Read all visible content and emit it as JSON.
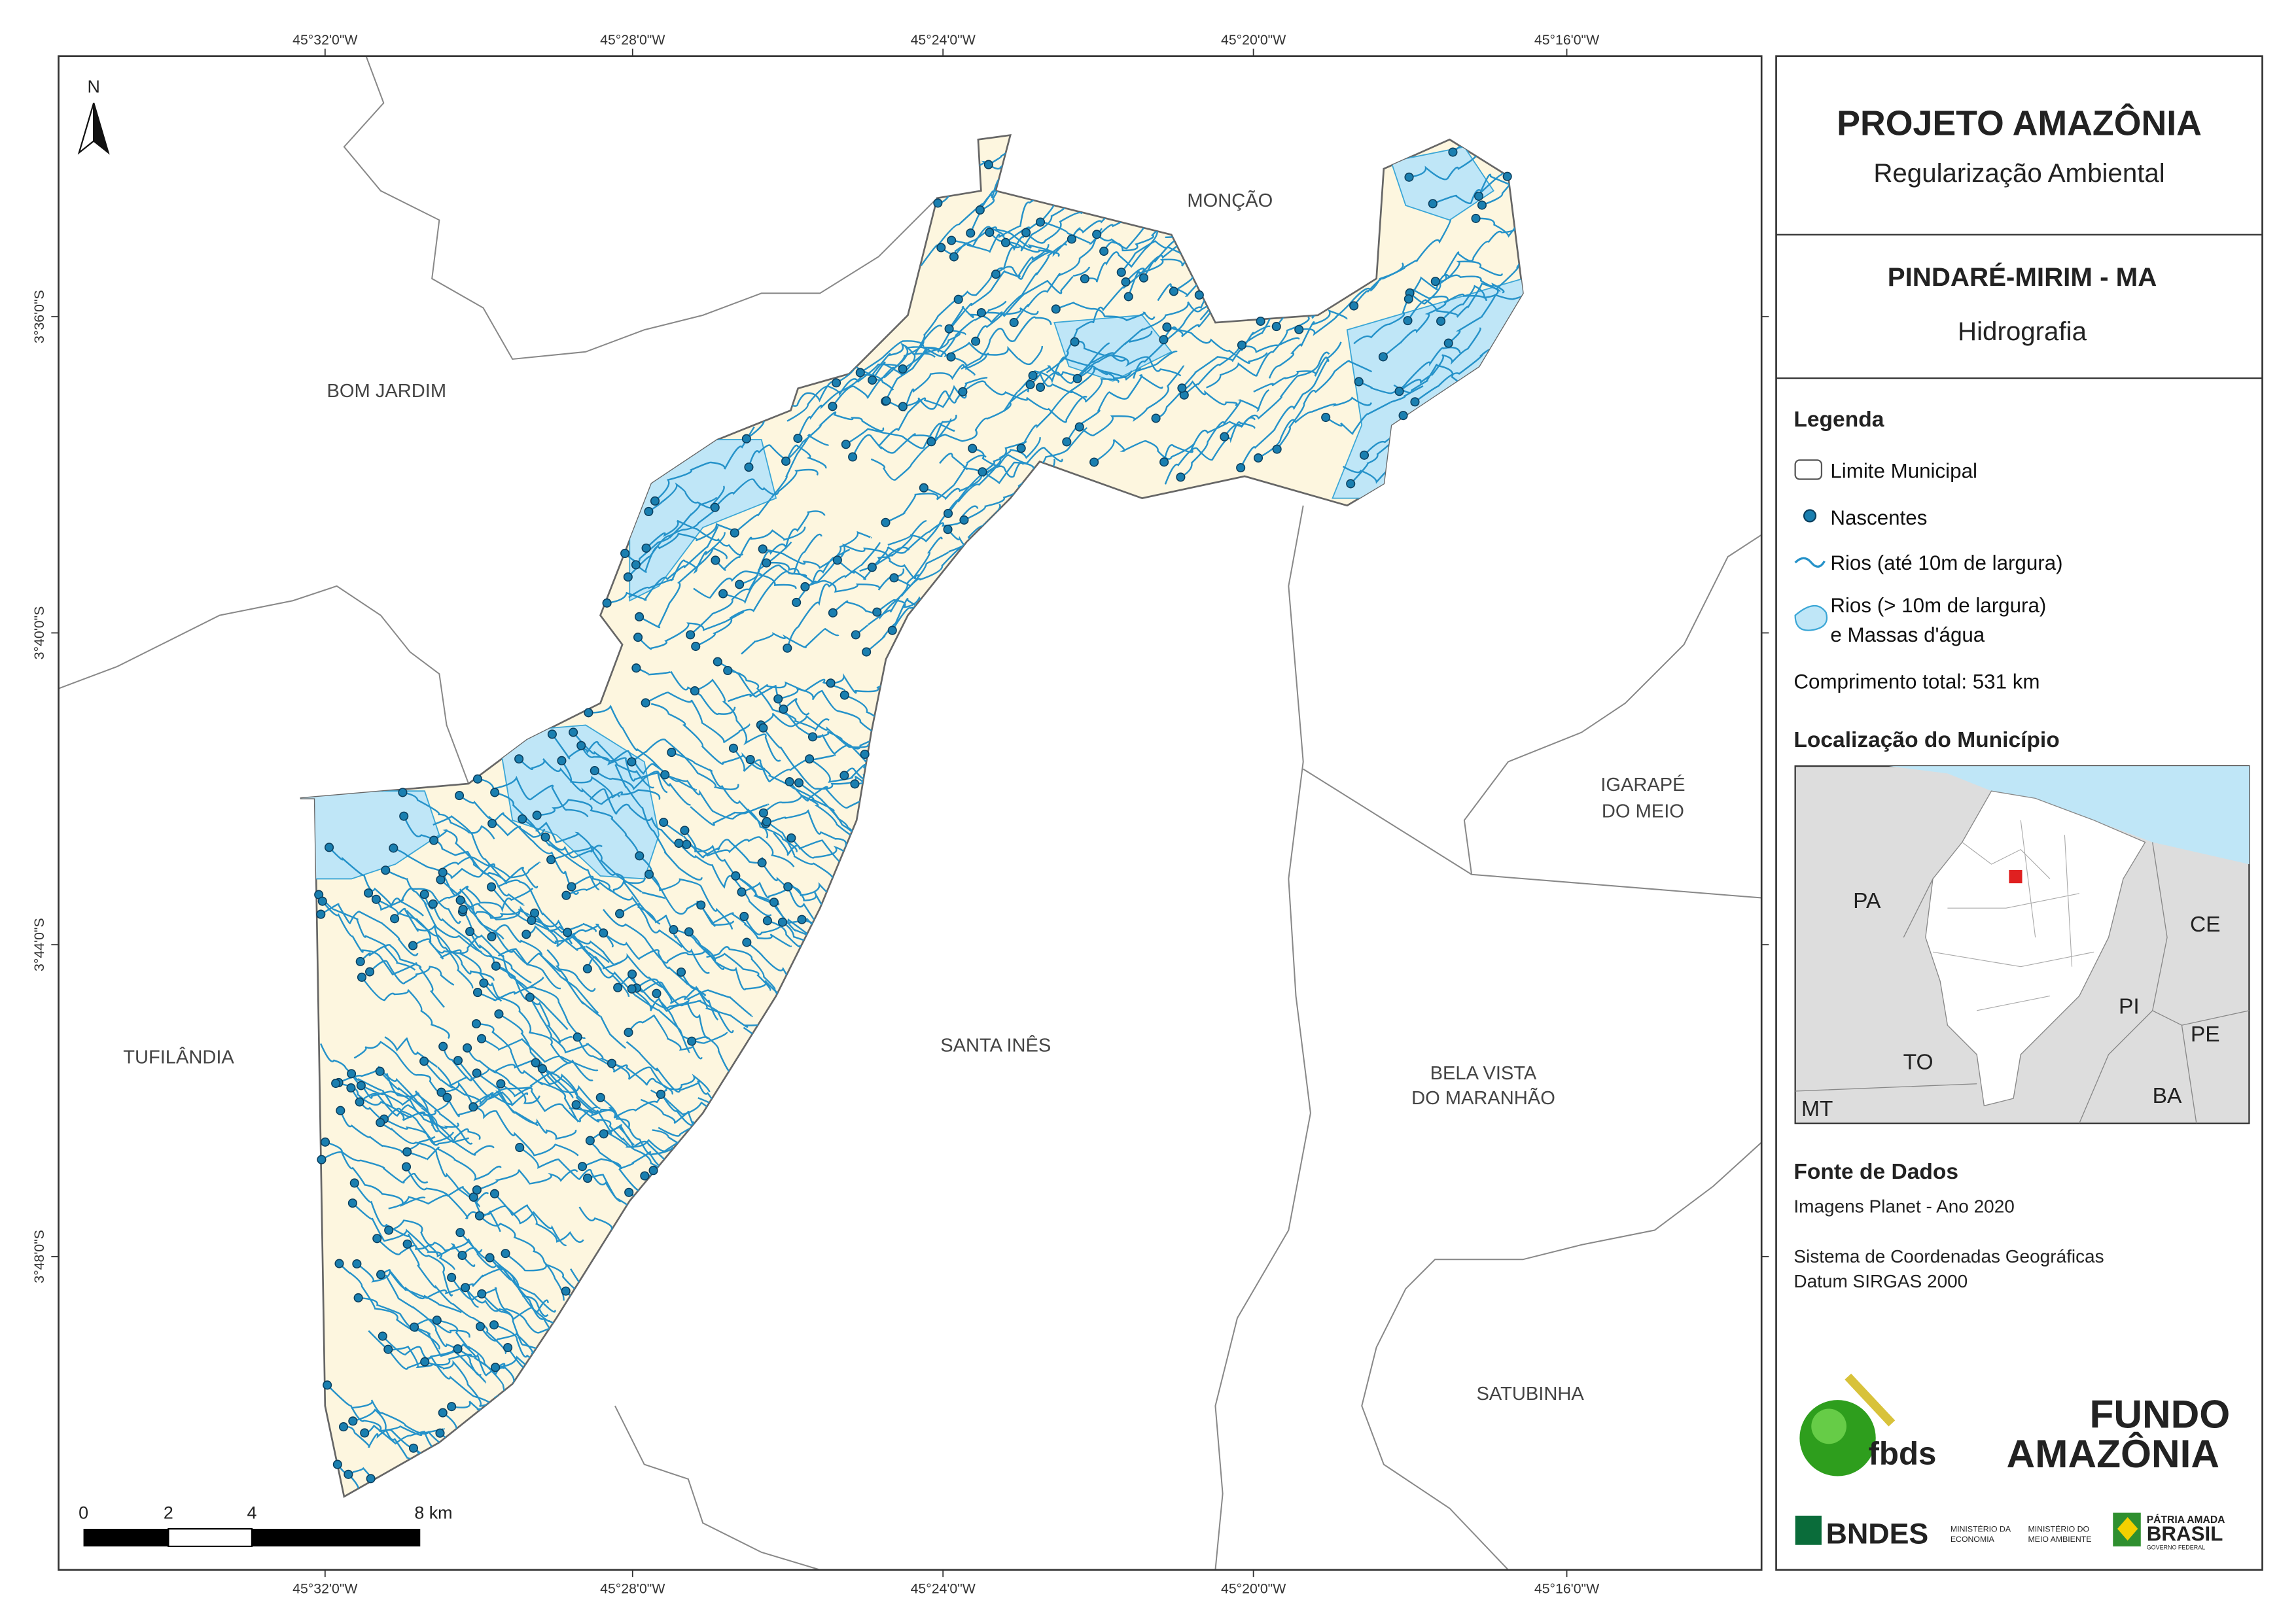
{
  "map": {
    "longitude_labels": [
      "45°32'0\"W",
      "45°28'0\"W",
      "45°24'0\"W",
      "45°20'0\"W",
      "45°16'0\"W"
    ],
    "latitude_labels": [
      "3°36'0\"S",
      "3°40'0\"S",
      "3°44'0\"S",
      "3°48'0\"S"
    ],
    "north_arrow": "N",
    "places": [
      [
        "MONÇÃO"
      ],
      [
        "BOM JARDIM"
      ],
      [
        "TUFILÂNDIA"
      ],
      [
        "SANTA INÊS"
      ],
      [
        "IGARAPÉ",
        "DO MEIO"
      ],
      [
        "BELA VISTA",
        "DO MARANHÃO"
      ],
      [
        "SATUBINHA"
      ]
    ],
    "scale_bar": [
      "0",
      "2",
      "4",
      "8 km"
    ]
  },
  "panel": {
    "title": "PROJETO AMAZÔNIA",
    "subtitle": "Regularização Ambiental",
    "municipality": "PINDARÉ-MIRIM - MA",
    "theme": "Hidrografia",
    "legend": {
      "title": "Legenda",
      "items": [
        "Limite Municipal",
        "Nascentes",
        "Rios (até 10m de largura)",
        [
          "Rios (> 10m de largura)",
          "e Massas d'água"
        ]
      ],
      "total_length": "Comprimento total:  531 km"
    },
    "location": {
      "title": "Localização do Município",
      "states": [
        "PA",
        "CE",
        "PI",
        "PE",
        "TO",
        "BA",
        "MT"
      ]
    },
    "sources": {
      "title": "Fonte de Dados",
      "lines": [
        "Imagens Planet - Ano 2020",
        "Sistema de Coordenadas Geográficas",
        "Datum SIRGAS 2000"
      ]
    },
    "logos": [
      "fbds",
      "FUNDO",
      "AMAZÔNIA",
      "BNDES",
      "MINISTÉRIO DA",
      "ECONOMIA",
      "MINISTÉRIO DO",
      "MEIO AMBIENTE",
      "PÁTRIA AMADA",
      "BRASIL",
      "GOVERNO FEDERAL"
    ]
  }
}
